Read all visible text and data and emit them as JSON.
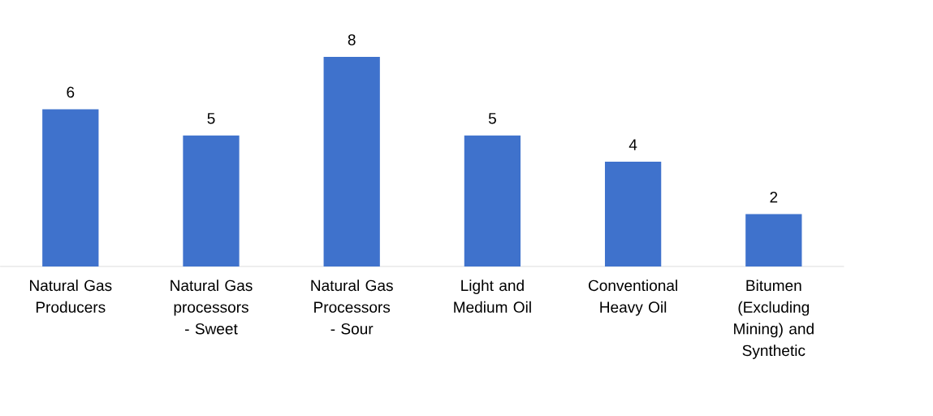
{
  "chart_data": {
    "type": "bar",
    "categories": [
      "Natural Gas Producers",
      "Natural Gas processors - Sweet",
      "Natural Gas Processors - Sour",
      "Light and Medium Oil",
      "Conventional Heavy Oil",
      "Bitumen (Excluding Mining) and Synthetic"
    ],
    "values": [
      6,
      5,
      8,
      5,
      4,
      2
    ],
    "color": "#3f72cc",
    "data_labels": true
  }
}
